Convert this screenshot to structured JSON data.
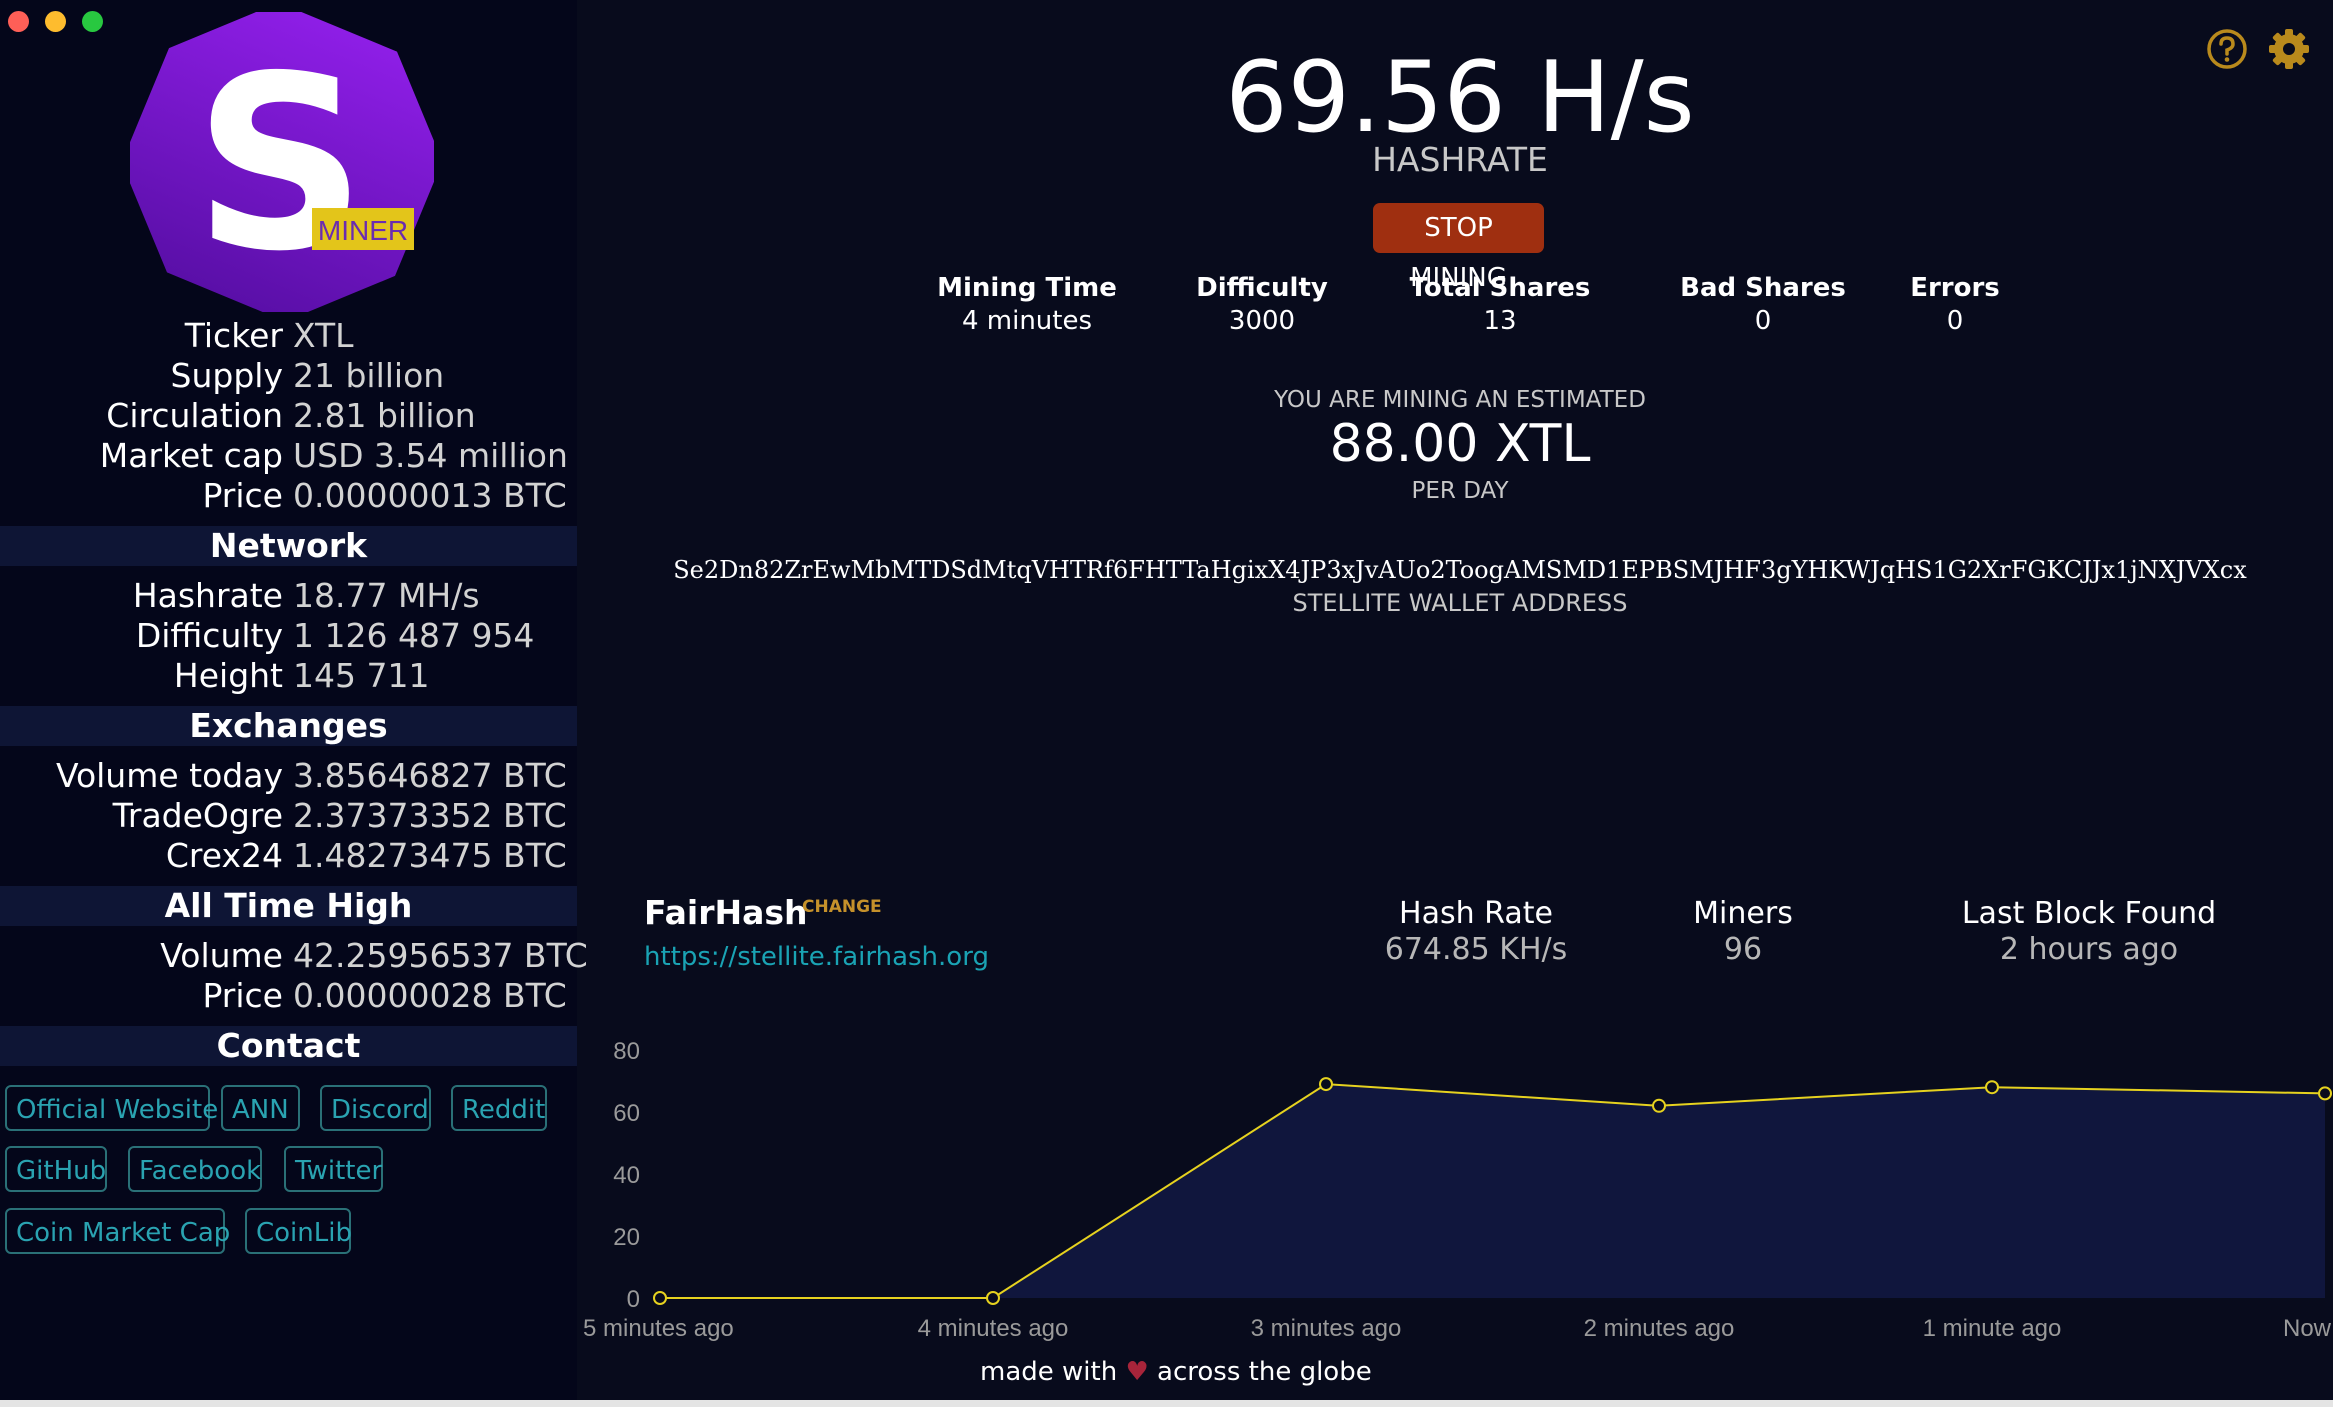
{
  "window": {
    "controls": [
      "close",
      "minimize",
      "zoom"
    ]
  },
  "logo": {
    "letter": "S",
    "badge": "MINER"
  },
  "coin": {
    "ticker": {
      "label": "Ticker",
      "value": "XTL"
    },
    "supply": {
      "label": "Supply",
      "value": "21 billion"
    },
    "circulation": {
      "label": "Circulation",
      "value": "2.81 billion"
    },
    "market_cap": {
      "label": "Market cap",
      "value": "USD 3.54 million"
    },
    "price": {
      "label": "Price",
      "value": "0.00000013 BTC"
    }
  },
  "network": {
    "title": "Network",
    "hashrate": {
      "label": "Hashrate",
      "value": "18.77 MH/s"
    },
    "difficulty": {
      "label": "Difficulty",
      "value": "1 126 487 954"
    },
    "height": {
      "label": "Height",
      "value": "145 711"
    }
  },
  "exchanges": {
    "title": "Exchanges",
    "volume_today": {
      "label": "Volume today",
      "value": "3.85646827 BTC"
    },
    "tradeogre": {
      "label": "TradeOgre",
      "value": "2.37373352 BTC"
    },
    "crex24": {
      "label": "Crex24",
      "value": "1.48273475 BTC"
    }
  },
  "ath": {
    "title": "All Time High",
    "volume": {
      "label": "Volume",
      "value": "42.25956537 BTC"
    },
    "price": {
      "label": "Price",
      "value": "0.00000028 BTC"
    }
  },
  "contact": {
    "title": "Contact",
    "links": [
      "Official Website",
      "ANN",
      "Discord",
      "Reddit",
      "GitHub",
      "Facebook",
      "Twitter",
      "Coin Market Cap",
      "CoinLib"
    ]
  },
  "mining": {
    "hashrate_value": "69.56 H/s",
    "hashrate_label": "HASHRATE",
    "stop_label": "STOP MINING",
    "stats": [
      {
        "label": "Mining Time",
        "value": "4 minutes"
      },
      {
        "label": "Difficulty",
        "value": "3000"
      },
      {
        "label": "Total Shares",
        "value": "13"
      },
      {
        "label": "Bad Shares",
        "value": "0"
      },
      {
        "label": "Errors",
        "value": "0"
      }
    ],
    "estimate_prefix": "YOU ARE MINING AN ESTIMATED",
    "estimate_value": "88.00 XTL",
    "estimate_suffix": "PER DAY",
    "wallet_address": "Se2Dn82ZrEwMbMTDSdMtqVHTRf6FHTTaHgixX4JP3xJvAUo2ToogAMSMD1EPBSMJHF3gYHKWJqHS1G2XrFGKCJJx1jNXJVXcx",
    "wallet_label": "STELLITE WALLET ADDRESS"
  },
  "pool": {
    "name": "FairHash",
    "change_label": "CHANGE",
    "url": "https://stellite.fairhash.org",
    "stats": [
      {
        "label": "Hash Rate",
        "value": "674.85 KH/s"
      },
      {
        "label": "Miners",
        "value": "96"
      },
      {
        "label": "Last Block Found",
        "value": "2 hours ago"
      }
    ]
  },
  "icons": {
    "help": "help-icon",
    "settings": "gear-icon",
    "heart": "heart-icon"
  },
  "colors": {
    "accent_yellow": "#e6d21f",
    "stop_button": "#9f2f10",
    "link_teal": "#1aa3b4",
    "logo_purple": "#7a16c6",
    "badge_yellow": "#e3c51a",
    "icon_gold": "#b98a1c"
  },
  "chart_data": {
    "type": "area",
    "x": [
      "5 minutes ago",
      "4 minutes ago",
      "3 minutes ago",
      "2 minutes ago",
      "1 minute ago",
      "Now"
    ],
    "series": [
      {
        "values": [
          0,
          0,
          69,
          62,
          68,
          66
        ]
      }
    ],
    "y_ticks": [
      0,
      20,
      40,
      60,
      80
    ],
    "ylim": [
      0,
      80
    ],
    "grid": false
  },
  "footer": {
    "prefix": "made with",
    "suffix": "across the globe"
  }
}
